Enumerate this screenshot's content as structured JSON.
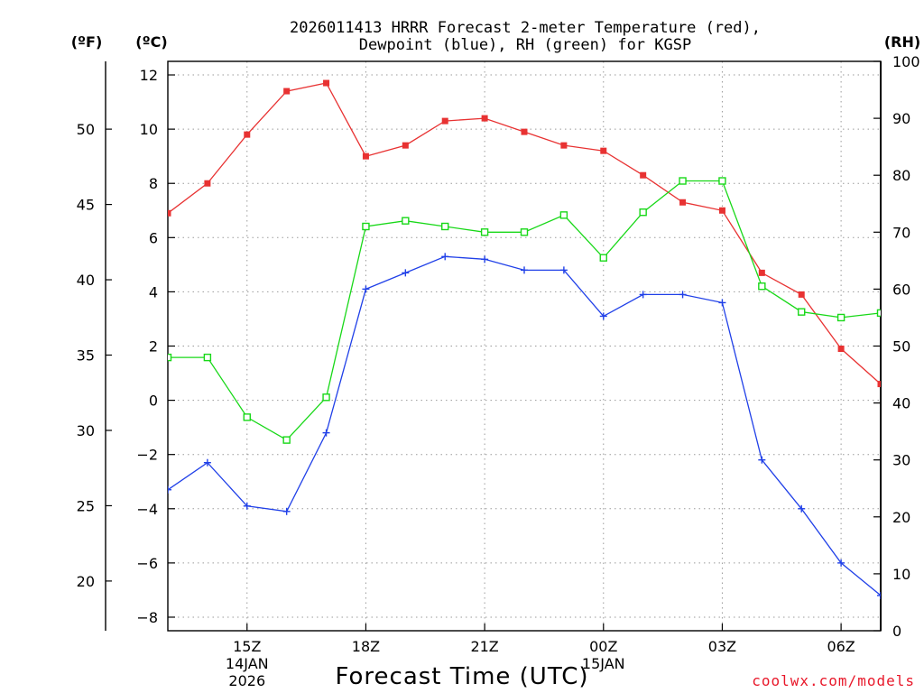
{
  "chart_data": {
    "type": "line",
    "title": "2026011413 HRRR Forecast 2-meter Temperature (red),",
    "subtitle": "Dewpoint (blue), RH (green) for KGSP",
    "xlabel": "Forecast Time (UTC)",
    "credit": "coolwx.com/models",
    "units": {
      "fahrenheit": "(ºF)",
      "celsius": "(ºC)",
      "rh": "(RH)"
    },
    "x": [
      13,
      14,
      15,
      16,
      17,
      18,
      19,
      20,
      21,
      22,
      23,
      24,
      25,
      26,
      27,
      28,
      29,
      30,
      31
    ],
    "xlim": [
      13,
      31
    ],
    "x_ticks": [
      {
        "x": 15,
        "label": "15Z",
        "date": "14JAN",
        "year": "2026"
      },
      {
        "x": 18,
        "label": "18Z"
      },
      {
        "x": 21,
        "label": "21Z"
      },
      {
        "x": 24,
        "label": "00Z",
        "date": "15JAN"
      },
      {
        "x": 27,
        "label": "03Z"
      },
      {
        "x": 30,
        "label": "06Z"
      }
    ],
    "left_celsius_axis": {
      "range": [
        -8.5,
        12.5
      ],
      "ticks": [
        -8,
        -6,
        -4,
        -2,
        0,
        2,
        4,
        6,
        8,
        10,
        12
      ]
    },
    "left_fahrenheit_axis": {
      "ticks": [
        20,
        25,
        30,
        35,
        40,
        45,
        50
      ]
    },
    "right_rh_axis": {
      "range": [
        0,
        100
      ],
      "ticks": [
        0,
        10,
        20,
        30,
        40,
        50,
        60,
        70,
        80,
        90,
        100
      ]
    },
    "grid": true,
    "series": [
      {
        "name": "Temperature",
        "axis": "celsius",
        "color": "#e83232",
        "marker": "filled-square",
        "values": [
          6.9,
          8.0,
          9.8,
          11.4,
          11.7,
          9.0,
          9.4,
          10.3,
          10.4,
          9.9,
          9.4,
          9.2,
          8.3,
          7.3,
          7.0,
          4.7,
          3.9,
          1.9,
          0.6
        ]
      },
      {
        "name": "Dewpoint",
        "axis": "celsius",
        "color": "#2040e8",
        "marker": "plus",
        "values": [
          -3.3,
          -2.3,
          -3.9,
          -4.1,
          -1.2,
          4.1,
          4.7,
          5.3,
          5.2,
          4.8,
          4.8,
          3.1,
          3.9,
          3.9,
          3.6,
          -2.2,
          -4.0,
          -6.0,
          -7.2
        ]
      },
      {
        "name": "RH",
        "axis": "rh",
        "color": "#18d818",
        "marker": "open-square",
        "values": [
          48,
          48,
          37.5,
          33.5,
          41,
          71,
          72,
          71,
          70,
          70,
          73,
          65.5,
          73.5,
          79,
          79,
          60.5,
          56,
          55,
          55.8
        ]
      }
    ]
  }
}
